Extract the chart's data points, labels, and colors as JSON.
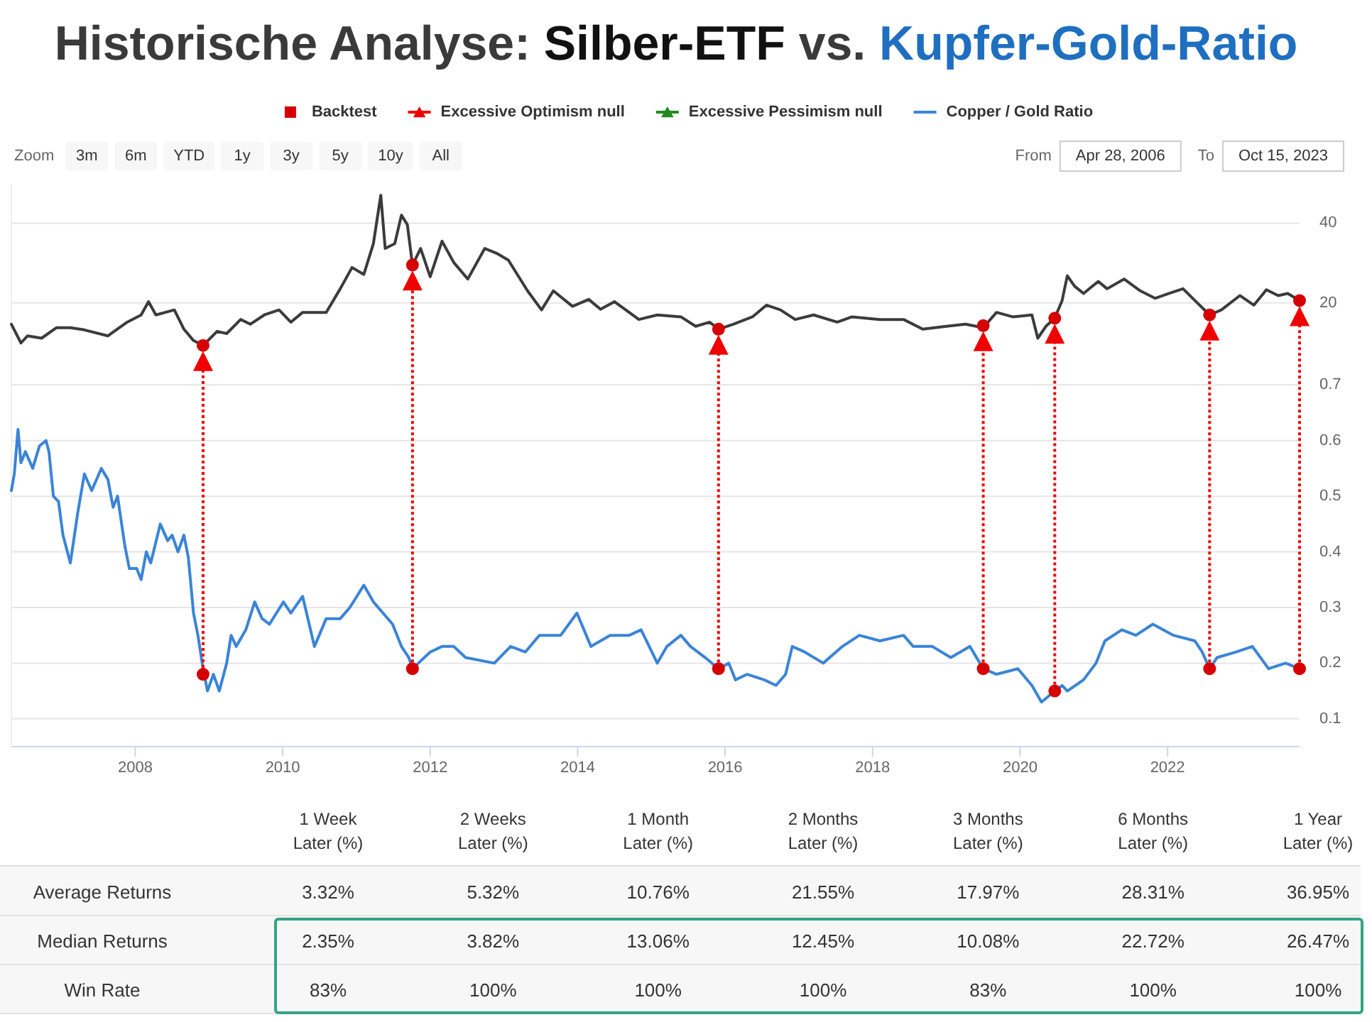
{
  "chart_data": [
    {
      "type": "line",
      "title": "Historische Analyse: Silber-ETF vs. Kupfer-Gold-Ratio",
      "legend": "top",
      "grid": "y",
      "log": "y",
      "xlim": [
        2006.32,
        2023.79
      ],
      "xticks": [
        2008,
        2010,
        2012,
        2014,
        2016,
        2018,
        2020,
        2022
      ],
      "ylim": [
        0.42,
        56
      ],
      "yticks": [
        20,
        40
      ],
      "y2lim": [
        0.05,
        1.06
      ],
      "y2ticks": [
        0.1,
        0.2,
        0.3,
        0.4,
        0.5,
        0.6,
        0.7
      ],
      "series": [
        {
          "type": "line",
          "color": "#3b3b3b",
          "axis": "y",
          "x": [
            2006.32,
            2006.45,
            2006.54,
            2006.73,
            2006.93,
            2007.12,
            2007.31,
            2007.63,
            2007.89,
            2008.08,
            2008.18,
            2008.28,
            2008.53,
            2008.66,
            2008.79,
            2008.92,
            2009.11,
            2009.24,
            2009.43,
            2009.56,
            2009.75,
            2009.95,
            2010.11,
            2010.27,
            2010.59,
            2010.78,
            2010.94,
            2011.1,
            2011.23,
            2011.33,
            2011.39,
            2011.52,
            2011.61,
            2011.69,
            2011.76,
            2011.87,
            2012.0,
            2012.16,
            2012.32,
            2012.51,
            2012.74,
            2012.9,
            2013.06,
            2013.32,
            2013.51,
            2013.67,
            2013.93,
            2014.15,
            2014.31,
            2014.5,
            2014.83,
            2015.08,
            2015.4,
            2015.6,
            2015.79,
            2015.91,
            2016.11,
            2016.37,
            2016.56,
            2016.75,
            2016.95,
            2017.2,
            2017.52,
            2017.72,
            2018.1,
            2018.42,
            2018.68,
            2019.0,
            2019.26,
            2019.5,
            2019.68,
            2019.9,
            2020.16,
            2020.24,
            2020.35,
            2020.47,
            2020.57,
            2020.64,
            2020.74,
            2020.86,
            2021.06,
            2021.18,
            2021.41,
            2021.63,
            2021.83,
            2022.02,
            2022.21,
            2022.37,
            2022.57,
            2022.73,
            2022.98,
            2023.17,
            2023.34,
            2023.5,
            2023.63,
            2023.79
          ],
          "values": [
            16.6,
            14.1,
            15.0,
            14.7,
            16.1,
            16.1,
            15.8,
            15.0,
            16.9,
            18.0,
            20.2,
            18.0,
            18.8,
            15.9,
            14.4,
            13.8,
            15.6,
            15.3,
            17.3,
            16.6,
            18.0,
            18.8,
            16.9,
            18.4,
            18.4,
            22.6,
            27.2,
            25.6,
            33.5,
            51.0,
            32.1,
            33.5,
            42.9,
            39.5,
            27.8,
            32.1,
            25.1,
            34.2,
            28.4,
            24.6,
            32.1,
            30.8,
            29.0,
            22.2,
            18.8,
            22.2,
            19.4,
            20.6,
            18.9,
            20.2,
            17.3,
            18.0,
            17.7,
            16.3,
            16.9,
            15.9,
            16.6,
            17.7,
            19.6,
            18.8,
            17.3,
            18.0,
            16.9,
            17.7,
            17.3,
            17.3,
            15.9,
            16.3,
            16.6,
            16.1,
            18.4,
            17.7,
            18.0,
            14.7,
            16.3,
            17.5,
            20.4,
            25.3,
            23.1,
            21.7,
            24.1,
            22.6,
            24.6,
            22.2,
            20.8,
            21.7,
            22.6,
            20.4,
            18.0,
            18.8,
            21.3,
            19.6,
            22.4,
            21.3,
            21.7,
            20.4
          ]
        },
        {
          "type": "scatter",
          "name": "Backtest",
          "color": "#d50000",
          "marker": "circle",
          "axis": "y",
          "x": [
            2008.92,
            2011.76,
            2015.91,
            2019.5,
            2020.47,
            2022.57,
            2023.79
          ],
          "values": [
            13.8,
            27.8,
            15.9,
            16.4,
            17.5,
            18.0,
            20.4
          ]
        },
        {
          "type": "scatter",
          "name": "Excessive Optimism null",
          "color": "#f00000",
          "marker": "triangle",
          "axis": "y"
        },
        {
          "type": "scatter",
          "name": "Excessive Pessimism null",
          "color": "#1e8c1e",
          "marker": "triangle",
          "axis": "y"
        },
        {
          "type": "line",
          "name": "Copper / Gold Ratio",
          "color": "#3a84d8",
          "axis": "y2",
          "x": [
            2006.32,
            2006.36,
            2006.41,
            2006.45,
            2006.51,
            2006.61,
            2006.7,
            2006.79,
            2006.83,
            2006.89,
            2006.96,
            2007.02,
            2007.12,
            2007.22,
            2007.31,
            2007.41,
            2007.54,
            2007.63,
            2007.7,
            2007.76,
            2007.86,
            2007.92,
            2008.02,
            2008.08,
            2008.15,
            2008.21,
            2008.34,
            2008.44,
            2008.5,
            2008.58,
            2008.66,
            2008.72,
            2008.79,
            2008.85,
            2008.92,
            2008.98,
            2009.06,
            2009.14,
            2009.24,
            2009.3,
            2009.37,
            2009.5,
            2009.62,
            2009.72,
            2009.82,
            2010.01,
            2010.11,
            2010.27,
            2010.43,
            2010.59,
            2010.78,
            2010.91,
            2011.1,
            2011.23,
            2011.36,
            2011.49,
            2011.61,
            2011.71,
            2011.76,
            2011.84,
            2012.0,
            2012.16,
            2012.32,
            2012.48,
            2012.87,
            2013.09,
            2013.29,
            2013.48,
            2013.77,
            2013.99,
            2014.18,
            2014.44,
            2014.7,
            2014.86,
            2015.08,
            2015.21,
            2015.4,
            2015.53,
            2015.73,
            2015.91,
            2016.05,
            2016.14,
            2016.3,
            2016.53,
            2016.69,
            2016.82,
            2016.91,
            2017.08,
            2017.33,
            2017.59,
            2017.82,
            2018.1,
            2018.42,
            2018.55,
            2018.81,
            2019.06,
            2019.32,
            2019.5,
            2019.68,
            2019.97,
            2020.16,
            2020.29,
            2020.38,
            2020.47,
            2020.57,
            2020.64,
            2020.86,
            2021.03,
            2021.15,
            2021.38,
            2021.57,
            2021.8,
            2022.08,
            2022.37,
            2022.47,
            2022.57,
            2022.67,
            2022.93,
            2023.15,
            2023.37,
            2023.6,
            2023.79
          ],
          "values": [
            0.51,
            0.54,
            0.62,
            0.56,
            0.58,
            0.55,
            0.59,
            0.6,
            0.58,
            0.5,
            0.49,
            0.43,
            0.38,
            0.47,
            0.54,
            0.51,
            0.55,
            0.53,
            0.48,
            0.5,
            0.41,
            0.37,
            0.37,
            0.35,
            0.4,
            0.38,
            0.45,
            0.42,
            0.43,
            0.4,
            0.43,
            0.39,
            0.29,
            0.25,
            0.19,
            0.15,
            0.18,
            0.15,
            0.2,
            0.25,
            0.23,
            0.26,
            0.31,
            0.28,
            0.27,
            0.31,
            0.29,
            0.32,
            0.23,
            0.28,
            0.28,
            0.3,
            0.34,
            0.31,
            0.29,
            0.27,
            0.23,
            0.21,
            0.19,
            0.2,
            0.22,
            0.23,
            0.23,
            0.21,
            0.2,
            0.23,
            0.22,
            0.25,
            0.25,
            0.29,
            0.23,
            0.25,
            0.25,
            0.26,
            0.2,
            0.23,
            0.25,
            0.23,
            0.21,
            0.19,
            0.2,
            0.17,
            0.18,
            0.17,
            0.16,
            0.18,
            0.23,
            0.22,
            0.2,
            0.23,
            0.25,
            0.24,
            0.25,
            0.23,
            0.23,
            0.21,
            0.23,
            0.19,
            0.18,
            0.19,
            0.16,
            0.13,
            0.14,
            0.15,
            0.16,
            0.15,
            0.17,
            0.2,
            0.24,
            0.26,
            0.25,
            0.27,
            0.25,
            0.24,
            0.22,
            0.19,
            0.21,
            0.22,
            0.23,
            0.19,
            0.2,
            0.19
          ]
        },
        {
          "type": "scatter",
          "color": "#d50000",
          "marker": "circle",
          "axis": "y2",
          "x": [
            2008.92,
            2011.76,
            2015.91,
            2019.5,
            2020.47,
            2022.57,
            2023.79
          ],
          "values": [
            0.18,
            0.19,
            0.19,
            0.19,
            0.15,
            0.19,
            0.19
          ]
        }
      ]
    },
    {
      "type": "other",
      "title": "Zoom",
      "categories": [
        "3m",
        "6m",
        "YTD",
        "1y",
        "3y",
        "5y",
        "10y",
        "All"
      ],
      "annotations": [
        "From",
        "Apr 28, 2006",
        "To",
        "Oct 15, 2023"
      ]
    },
    {
      "type": "other",
      "categories": [
        "1 Week\nLater (%)",
        "2 Weeks\nLater (%)",
        "1 Month\nLater (%)",
        "2 Months\nLater (%)",
        "3 Months\nLater (%)",
        "6 Months\nLater (%)",
        "1 Year\nLater (%)"
      ],
      "y_categories": [
        "Average Returns",
        "Median Returns",
        "Win Rate"
      ],
      "cell_labels": [
        [
          "3.32%",
          "5.32%",
          "10.76%",
          "21.55%",
          "17.97%",
          "28.31%",
          "36.95%"
        ],
        [
          "2.35%",
          "3.82%",
          "13.06%",
          "12.45%",
          "10.08%",
          "22.72%",
          "26.47%"
        ],
        [
          "83%",
          "100%",
          "100%",
          "100%",
          "83%",
          "100%",
          "100%"
        ]
      ]
    }
  ]
}
